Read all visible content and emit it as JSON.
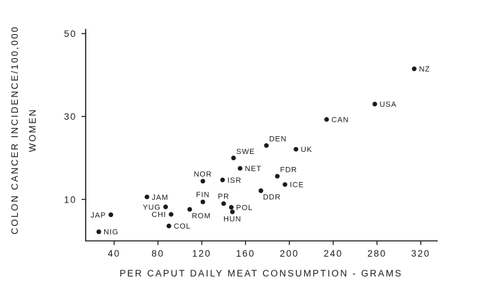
{
  "figure": {
    "background": "#ffffff",
    "ink": "#1b1b1b"
  },
  "chart_data": {
    "type": "scatter",
    "title": "",
    "xlabel": "PER CAPUT DAILY MEAT CONSUMPTION - GRAMS",
    "ylabel_line1": "COLON CANCER INCIDENCE/100,000",
    "ylabel_line2": "WOMEN",
    "xlim": [
      14,
      335
    ],
    "ylim": [
      0,
      51
    ],
    "x_ticks": [
      40,
      80,
      120,
      160,
      200,
      240,
      280,
      320
    ],
    "y_ticks": [
      10,
      30,
      50
    ],
    "grid": false,
    "legend": "none",
    "points": [
      {
        "label": "NIG",
        "x": 26,
        "y": 2.2,
        "placement": "right"
      },
      {
        "label": "JAP",
        "x": 37,
        "y": 6.3,
        "placement": "left"
      },
      {
        "label": "JAM",
        "x": 70,
        "y": 10.6,
        "placement": "right"
      },
      {
        "label": "YUG",
        "x": 87,
        "y": 8.2,
        "placement": "left"
      },
      {
        "label": "CHI",
        "x": 92,
        "y": 6.4,
        "placement": "left"
      },
      {
        "label": "COL",
        "x": 90,
        "y": 3.6,
        "placement": "right"
      },
      {
        "label": "ROM",
        "x": 109,
        "y": 7.6,
        "placement": "below-right"
      },
      {
        "label": "FIN",
        "x": 121,
        "y": 9.4,
        "placement": "above"
      },
      {
        "label": "NOR",
        "x": 121,
        "y": 14.4,
        "placement": "above"
      },
      {
        "label": "PR",
        "x": 140,
        "y": 9.0,
        "placement": "above"
      },
      {
        "label": "POL",
        "x": 147,
        "y": 8.1,
        "placement": "right"
      },
      {
        "label": "HUN",
        "x": 148,
        "y": 7.0,
        "placement": "below"
      },
      {
        "label": "ISR",
        "x": 139,
        "y": 14.7,
        "placement": "right"
      },
      {
        "label": "SWE",
        "x": 149,
        "y": 20.0,
        "placement": "above-right"
      },
      {
        "label": "NET",
        "x": 155,
        "y": 17.5,
        "placement": "right"
      },
      {
        "label": "DDR",
        "x": 174,
        "y": 12.1,
        "placement": "below-right"
      },
      {
        "label": "DEN",
        "x": 179,
        "y": 23.0,
        "placement": "above-right"
      },
      {
        "label": "FDR",
        "x": 189,
        "y": 15.6,
        "placement": "above-right"
      },
      {
        "label": "ICE",
        "x": 196,
        "y": 13.6,
        "placement": "right"
      },
      {
        "label": "UK",
        "x": 206,
        "y": 22.1,
        "placement": "right"
      },
      {
        "label": "CAN",
        "x": 234,
        "y": 29.3,
        "placement": "right"
      },
      {
        "label": "USA",
        "x": 278,
        "y": 33.0,
        "placement": "right"
      },
      {
        "label": "NZ",
        "x": 314,
        "y": 41.5,
        "placement": "right"
      }
    ]
  }
}
